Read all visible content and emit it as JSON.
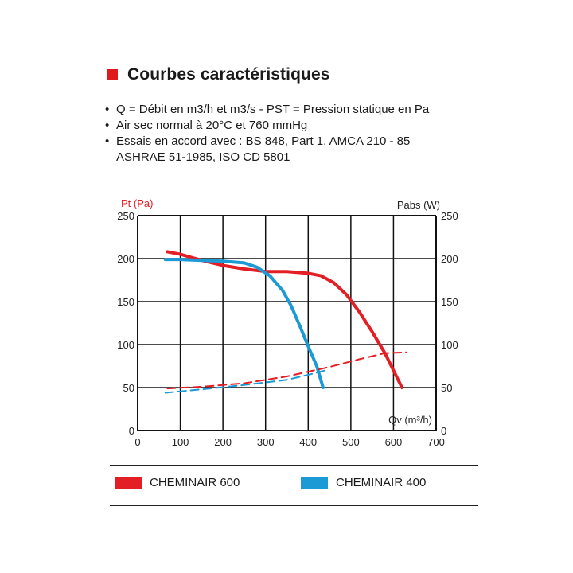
{
  "header": {
    "title": "Courbes caractéristiques",
    "accent_color": "#e0191b"
  },
  "notes": [
    "Q = Débit en m3/h et m3/s - PST = Pression statique en Pa",
    "Air sec normal à 20°C et 760 mmHg",
    "Essais en accord avec : BS 848, Part 1, AMCA 210 - 85",
    "ASHRAE 51-1985, ISO CD 5801"
  ],
  "bullet": "•",
  "chart_data": {
    "type": "line",
    "left_axis": {
      "label": "Pt (Pa)",
      "ticks": [
        "250",
        "200",
        "150",
        "100",
        "50",
        "0"
      ],
      "range": [
        0,
        250
      ]
    },
    "right_axis": {
      "label": "Pabs (W)",
      "ticks": [
        "250",
        "200",
        "150",
        "100",
        "50",
        "0"
      ],
      "range": [
        0,
        250
      ]
    },
    "x_axis": {
      "label": "Qv (m³/h)",
      "ticks": [
        "0",
        "100",
        "200",
        "300",
        "400",
        "500",
        "600",
        "700"
      ],
      "range": [
        0,
        700
      ]
    },
    "grid": true,
    "series": [
      {
        "name": "CHEMINAIR 600",
        "color": "#e31e24",
        "kind": "pressure",
        "x": [
          70,
          100,
          150,
          200,
          250,
          300,
          350,
          400,
          430,
          460,
          490,
          520,
          550,
          580,
          600,
          620
        ],
        "y": [
          208,
          205,
          198,
          192,
          188,
          185,
          185,
          183,
          180,
          172,
          158,
          138,
          115,
          90,
          70,
          50
        ]
      },
      {
        "name": "CHEMINAIR 400",
        "color": "#1b9ad6",
        "kind": "pressure",
        "x": [
          65,
          100,
          150,
          200,
          250,
          280,
          310,
          340,
          360,
          380,
          400,
          420,
          435
        ],
        "y": [
          199,
          199,
          198,
          197,
          195,
          190,
          180,
          163,
          145,
          122,
          98,
          75,
          50
        ]
      },
      {
        "name": "CHEMINAIR 600 Pabs",
        "color": "#e31e24",
        "kind": "power",
        "x": [
          70,
          150,
          250,
          350,
          450,
          520,
          580,
          630
        ],
        "y": [
          49,
          51,
          55,
          63,
          74,
          83,
          90,
          91
        ]
      },
      {
        "name": "CHEMINAIR 400 Pabs",
        "color": "#1b9ad6",
        "kind": "power",
        "x": [
          65,
          150,
          250,
          350,
          410,
          440
        ],
        "y": [
          44,
          48,
          53,
          59,
          66,
          70
        ]
      }
    ],
    "legend": [
      {
        "label": "CHEMINAIR 600",
        "color": "#e31e24"
      },
      {
        "label": "CHEMINAIR 400",
        "color": "#1b9ad6"
      }
    ]
  }
}
